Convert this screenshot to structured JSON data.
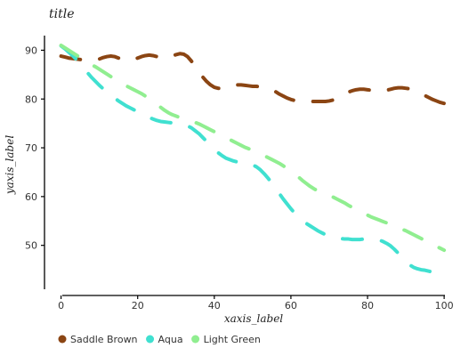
{
  "chart_data": {
    "type": "line",
    "title": "title",
    "xlabel": "xaxis_label",
    "ylabel": "yaxis_label",
    "xlim": [
      -2,
      103
    ],
    "ylim": [
      41,
      93
    ],
    "xticks": [
      0,
      20,
      40,
      60,
      80,
      100
    ],
    "yticks": [
      50,
      60,
      70,
      80,
      90
    ],
    "grid": false,
    "legend_position": "bottom",
    "series": [
      {
        "name": "Saddle Brown",
        "color": "#8B4513",
        "x": [
          0,
          1,
          2,
          3,
          4,
          5,
          6,
          7,
          8,
          9,
          10,
          11,
          12,
          13,
          14,
          15,
          16,
          17,
          18,
          19,
          20,
          21,
          22,
          23,
          24,
          25,
          26,
          27,
          28,
          29,
          30,
          31,
          32,
          33,
          34,
          35,
          36,
          37,
          38,
          39,
          40,
          41,
          42,
          43,
          44,
          45,
          46,
          47,
          48,
          49,
          50,
          51,
          52,
          53,
          54,
          55,
          56,
          57,
          58,
          59,
          60,
          61,
          62,
          63,
          64,
          65,
          66,
          67,
          68,
          69,
          70,
          71,
          72,
          73,
          74,
          75,
          76,
          77,
          78,
          79,
          80,
          81,
          82,
          83,
          84,
          85,
          86,
          87,
          88,
          89,
          90,
          91,
          92,
          93,
          94,
          95,
          96,
          97,
          98,
          99,
          100
        ],
        "y": [
          88.8,
          88.6,
          88.4,
          88.3,
          88.2,
          88.1,
          88.0,
          87.9,
          87.9,
          88.0,
          88.2,
          88.5,
          88.7,
          88.8,
          88.7,
          88.4,
          88.1,
          87.9,
          87.9,
          88.1,
          88.4,
          88.7,
          88.9,
          89.0,
          88.9,
          88.7,
          88.5,
          88.4,
          88.5,
          88.8,
          89.1,
          89.3,
          89.2,
          88.7,
          87.8,
          86.7,
          85.6,
          84.5,
          83.6,
          82.9,
          82.4,
          82.2,
          82.2,
          82.3,
          82.6,
          82.8,
          82.9,
          82.9,
          82.8,
          82.7,
          82.6,
          82.6,
          82.5,
          82.4,
          82.2,
          81.9,
          81.5,
          81.0,
          80.6,
          80.2,
          79.9,
          79.7,
          79.6,
          79.5,
          79.5,
          79.5,
          79.5,
          79.5,
          79.5,
          79.5,
          79.6,
          79.8,
          80.1,
          80.5,
          81.0,
          81.4,
          81.7,
          81.9,
          82.0,
          82.0,
          81.9,
          81.8,
          81.7,
          81.7,
          81.7,
          81.8,
          82.0,
          82.2,
          82.3,
          82.3,
          82.2,
          82.1,
          81.8,
          81.5,
          81.1,
          80.7,
          80.3,
          79.9,
          79.6,
          79.3,
          79.1
        ]
      },
      {
        "name": "Aqua",
        "color": "#40E0D0",
        "x": [
          0,
          1,
          2,
          3,
          4,
          5,
          6,
          7,
          8,
          9,
          10,
          11,
          12,
          13,
          14,
          15,
          16,
          17,
          18,
          19,
          20,
          21,
          22,
          23,
          24,
          25,
          26,
          27,
          28,
          29,
          30,
          31,
          32,
          33,
          34,
          35,
          36,
          37,
          38,
          39,
          40,
          41,
          42,
          43,
          44,
          45,
          46,
          47,
          48,
          49,
          50,
          51,
          52,
          53,
          54,
          55,
          56,
          57,
          58,
          59,
          60,
          61,
          62,
          63,
          64,
          65,
          66,
          67,
          68,
          69,
          70,
          71,
          72,
          73,
          74,
          75,
          76,
          77,
          78,
          79,
          80,
          81,
          82,
          83,
          84,
          85,
          86,
          87,
          88,
          89,
          90,
          91,
          92,
          93,
          94,
          95,
          96,
          97,
          98,
          99,
          100
        ],
        "y": [
          90.9,
          90.3,
          89.6,
          88.9,
          88.1,
          87.2,
          86.3,
          85.3,
          84.4,
          83.6,
          82.8,
          82.1,
          81.4,
          80.8,
          80.2,
          79.6,
          79.1,
          78.6,
          78.2,
          77.8,
          77.4,
          77.0,
          76.6,
          76.2,
          75.9,
          75.6,
          75.4,
          75.3,
          75.2,
          75.1,
          75.0,
          74.9,
          74.8,
          74.5,
          74.1,
          73.5,
          72.9,
          72.1,
          71.3,
          70.5,
          69.7,
          69.0,
          68.4,
          67.9,
          67.6,
          67.3,
          67.1,
          67.0,
          66.9,
          66.8,
          66.5,
          66.1,
          65.5,
          64.7,
          63.8,
          62.8,
          61.7,
          60.6,
          59.5,
          58.5,
          57.5,
          56.6,
          55.8,
          55.1,
          54.5,
          54.0,
          53.5,
          53.0,
          52.6,
          52.2,
          51.9,
          51.7,
          51.5,
          51.4,
          51.3,
          51.3,
          51.2,
          51.2,
          51.2,
          51.3,
          51.3,
          51.3,
          51.2,
          51.1,
          50.8,
          50.4,
          49.9,
          49.2,
          48.4,
          47.5,
          46.7,
          46.0,
          45.5,
          45.2,
          45.0,
          44.9,
          44.7,
          44.5,
          44.2,
          43.8,
          43.2
        ]
      },
      {
        "name": "Light Green",
        "color": "#90EE90",
        "x": [
          0,
          1,
          2,
          3,
          4,
          5,
          6,
          7,
          8,
          9,
          10,
          11,
          12,
          13,
          14,
          15,
          16,
          17,
          18,
          19,
          20,
          21,
          22,
          23,
          24,
          25,
          26,
          27,
          28,
          29,
          30,
          31,
          32,
          33,
          34,
          35,
          36,
          37,
          38,
          39,
          40,
          41,
          42,
          43,
          44,
          45,
          46,
          47,
          48,
          49,
          50,
          51,
          52,
          53,
          54,
          55,
          56,
          57,
          58,
          59,
          60,
          61,
          62,
          63,
          64,
          65,
          66,
          67,
          68,
          69,
          70,
          71,
          72,
          73,
          74,
          75,
          76,
          77,
          78,
          79,
          80,
          81,
          82,
          83,
          84,
          85,
          86,
          87,
          88,
          89,
          90,
          91,
          92,
          93,
          94,
          95,
          96,
          97,
          98,
          99,
          100
        ],
        "y": [
          91.0,
          90.5,
          90.0,
          89.5,
          89.0,
          88.5,
          88.0,
          87.5,
          87.0,
          86.6,
          86.1,
          85.6,
          85.1,
          84.6,
          84.1,
          83.6,
          83.1,
          82.7,
          82.3,
          81.9,
          81.5,
          81.1,
          80.6,
          80.1,
          79.5,
          78.9,
          78.3,
          77.7,
          77.2,
          76.8,
          76.5,
          76.2,
          76.0,
          75.7,
          75.5,
          75.2,
          74.9,
          74.5,
          74.1,
          73.7,
          73.3,
          72.9,
          72.5,
          72.1,
          71.7,
          71.3,
          70.9,
          70.5,
          70.1,
          69.8,
          69.4,
          69.0,
          68.7,
          68.4,
          68.0,
          67.6,
          67.2,
          66.8,
          66.3,
          65.8,
          65.2,
          64.6,
          64.0,
          63.3,
          62.7,
          62.1,
          61.6,
          61.2,
          60.8,
          60.5,
          60.2,
          59.9,
          59.5,
          59.1,
          58.7,
          58.2,
          57.8,
          57.3,
          56.9,
          56.5,
          56.2,
          55.8,
          55.5,
          55.2,
          54.9,
          54.6,
          54.3,
          54.0,
          53.7,
          53.3,
          53.0,
          52.6,
          52.2,
          51.8,
          51.4,
          51.0,
          50.6,
          50.2,
          49.8,
          49.4,
          49.0
        ]
      }
    ]
  }
}
